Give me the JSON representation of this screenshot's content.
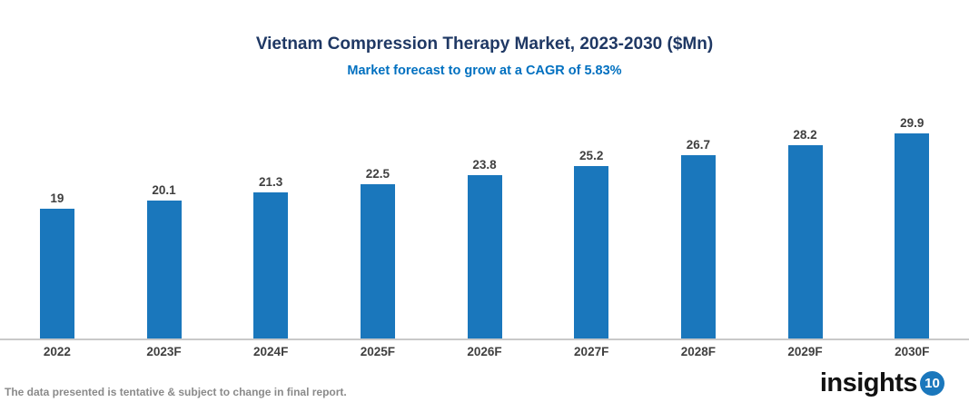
{
  "header": {
    "title": "Vietnam Compression Therapy Market, 2023-2030 ($Mn)",
    "subtitle": "Market forecast to grow at a CAGR of 5.83%",
    "title_color": "#1F3864",
    "subtitle_color": "#0070C0"
  },
  "chart_data": {
    "type": "bar",
    "title": "Vietnam Compression Therapy Market, 2023-2030 ($Mn)",
    "subtitle": "Market forecast to grow at a CAGR of 5.83%",
    "categories": [
      "2022",
      "2023F",
      "2024F",
      "2025F",
      "2026F",
      "2027F",
      "2028F",
      "2029F",
      "2030F"
    ],
    "values": [
      19,
      20.1,
      21.3,
      22.5,
      23.8,
      25.2,
      26.7,
      28.2,
      29.9
    ],
    "unit": "$Mn",
    "xlabel": "",
    "ylabel": "",
    "ylim": [
      0,
      31
    ],
    "grid": false,
    "legend": "none",
    "bar_color": "#1A77BC",
    "value_label_color": "#3F3F3F",
    "axis_line_color": "#C9C9C9"
  },
  "footer": {
    "disclaimer": "The data presented is tentative & subject to change in final report.",
    "logo_text": "insights",
    "logo_badge": "10",
    "logo_badge_color": "#1A77BC"
  }
}
